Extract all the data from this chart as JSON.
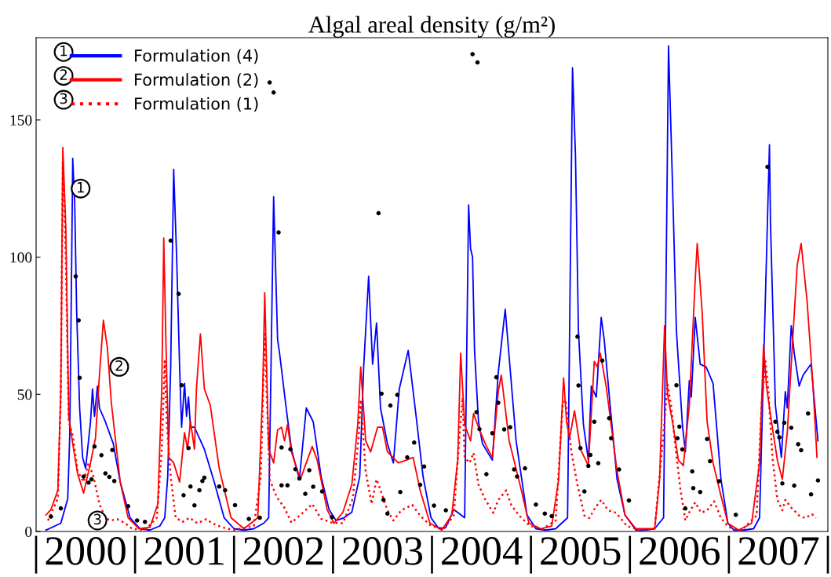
{
  "chart_data": {
    "type": "line",
    "title": "Algal areal density (g/m²)",
    "xlim": [
      2000,
      2008
    ],
    "ylim": [
      0,
      180
    ],
    "yticks": [
      0,
      50,
      100,
      150
    ],
    "xticks": [
      {
        "value": 2000,
        "label": "|"
      },
      {
        "value": 2000.5,
        "label": "2000"
      },
      {
        "value": 2001,
        "label": "|"
      },
      {
        "value": 2001.5,
        "label": "2001"
      },
      {
        "value": 2002,
        "label": "|"
      },
      {
        "value": 2002.5,
        "label": "2002"
      },
      {
        "value": 2003,
        "label": "|"
      },
      {
        "value": 2003.5,
        "label": "2003"
      },
      {
        "value": 2004,
        "label": "|"
      },
      {
        "value": 2004.5,
        "label": "2004"
      },
      {
        "value": 2005,
        "label": "|"
      },
      {
        "value": 2005.5,
        "label": "2005"
      },
      {
        "value": 2006,
        "label": "|"
      },
      {
        "value": 2006.5,
        "label": "2006"
      },
      {
        "value": 2007,
        "label": "|"
      },
      {
        "value": 2007.5,
        "label": "2007"
      },
      {
        "value": 2008,
        "label": "|"
      }
    ],
    "grid": false,
    "legend": "top left",
    "marker": "none",
    "annotations": [
      "1",
      "2",
      "3",
      {
        "text": "1",
        "x": 2000.45,
        "y": 125
      },
      {
        "text": "2",
        "x": 2000.84,
        "y": 60
      },
      {
        "text": "3",
        "x": 2000.62,
        "y": 4
      }
    ],
    "series": [
      {
        "name": "Formulation (4)",
        "color": "#0000ff",
        "line_style": "solid",
        "x": [
          2000.1,
          2000.25,
          2000.32,
          2000.34,
          2000.36,
          2000.37,
          2000.39,
          2000.41,
          2000.44,
          2000.47,
          2000.5,
          2000.55,
          2000.57,
          2000.59,
          2000.62,
          2000.64,
          2000.7,
          2000.78,
          2000.85,
          2000.95,
          2001.05,
          2001.15,
          2001.25,
          2001.3,
          2001.33,
          2001.36,
          2001.39,
          2001.42,
          2001.45,
          2001.47,
          2001.5,
          2001.52,
          2001.54,
          2001.56,
          2001.6,
          2001.7,
          2001.8,
          2001.9,
          2002.0,
          2002.1,
          2002.2,
          2002.3,
          2002.35,
          2002.4,
          2002.44,
          2002.46,
          2002.52,
          2002.58,
          2002.66,
          2002.73,
          2002.8,
          2002.88,
          2002.96,
          2003.03,
          2003.11,
          2003.19,
          2003.27,
          2003.31,
          2003.36,
          2003.4,
          2003.44,
          2003.48,
          2003.55,
          2003.61,
          2003.67,
          2003.76,
          2003.83,
          2003.91,
          2003.99,
          2004.07,
          2004.14,
          2004.22,
          2004.33,
          2004.37,
          2004.39,
          2004.41,
          2004.43,
          2004.47,
          2004.51,
          2004.61,
          2004.67,
          2004.74,
          2004.85,
          2004.96,
          2005.05,
          2005.15,
          2005.25,
          2005.37,
          2005.42,
          2005.45,
          2005.48,
          2005.53,
          2005.58,
          2005.61,
          2005.66,
          2005.71,
          2005.74,
          2005.8,
          2005.87,
          2005.95,
          2006.06,
          2006.15,
          2006.25,
          2006.34,
          2006.39,
          2006.43,
          2006.47,
          2006.53,
          2006.56,
          2006.6,
          2006.62,
          2006.66,
          2006.71,
          2006.77,
          2006.84,
          2006.92,
          2006.99,
          2007.05,
          2007.15,
          2007.25,
          2007.31,
          2007.34,
          2007.41,
          2007.42,
          2007.47,
          2007.53,
          2007.57,
          2007.59,
          2007.63,
          2007.66,
          2007.71,
          2007.75,
          2007.83,
          2007.9
        ],
        "values": [
          0.5,
          3,
          12,
          35,
          100,
          136,
          120,
          80,
          45,
          27,
          23,
          40,
          52,
          42,
          53,
          45,
          40,
          32,
          18,
          5,
          1,
          0.5,
          2,
          5,
          20,
          60,
          132,
          100,
          60,
          38,
          54,
          42,
          49,
          38,
          38,
          30,
          18,
          5,
          1,
          0.5,
          1,
          3,
          5,
          122,
          70,
          65,
          47,
          30,
          19,
          45,
          40,
          20,
          8,
          4,
          5,
          7,
          20,
          60,
          93,
          61,
          76,
          45,
          32,
          25,
          52,
          66,
          45,
          20,
          5,
          1,
          1.5,
          8,
          5,
          119,
          103,
          100,
          66,
          40,
          32,
          26,
          58,
          81,
          33,
          6,
          1,
          0.5,
          1,
          5,
          169,
          137,
          73,
          39,
          26,
          53,
          49,
          78,
          70,
          46,
          19,
          6,
          0.5,
          0.5,
          1,
          5,
          177,
          127,
          73,
          39,
          29,
          55,
          49,
          78,
          61,
          60,
          54,
          19,
          3,
          0.5,
          0.5,
          1,
          5,
          46,
          141,
          113,
          46,
          27,
          51,
          45,
          75,
          65,
          53,
          57,
          61,
          33
        ]
      },
      {
        "name": "Formulation (2)",
        "color": "#ff0000",
        "line_style": "solid",
        "x": [
          2000.1,
          2000.15,
          2000.22,
          2000.25,
          2000.27,
          2000.3,
          2000.33,
          2000.37,
          2000.42,
          2000.48,
          2000.55,
          2000.6,
          2000.64,
          2000.68,
          2000.72,
          2000.76,
          2000.85,
          2000.93,
          2001.04,
          2001.15,
          2001.23,
          2001.27,
          2001.29,
          2001.31,
          2001.34,
          2001.39,
          2001.45,
          2001.5,
          2001.53,
          2001.56,
          2001.6,
          2001.62,
          2001.66,
          2001.7,
          2001.76,
          2001.85,
          2001.97,
          2002.1,
          2002.24,
          2002.29,
          2002.31,
          2002.35,
          2002.4,
          2002.44,
          2002.48,
          2002.51,
          2002.54,
          2002.58,
          2002.67,
          2002.79,
          2002.84,
          2002.94,
          2003.01,
          2003.1,
          2003.19,
          2003.25,
          2003.28,
          2003.33,
          2003.38,
          2003.45,
          2003.5,
          2003.55,
          2003.66,
          2003.74,
          2003.81,
          2003.88,
          2003.98,
          2004.1,
          2004.2,
          2004.26,
          2004.29,
          2004.33,
          2004.39,
          2004.42,
          2004.48,
          2004.55,
          2004.61,
          2004.67,
          2004.7,
          2004.78,
          2004.89,
          2004.98,
          2005.1,
          2005.21,
          2005.28,
          2005.33,
          2005.36,
          2005.39,
          2005.44,
          2005.5,
          2005.58,
          2005.64,
          2005.67,
          2005.7,
          2005.76,
          2005.87,
          2005.95,
          2006.06,
          2006.25,
          2006.3,
          2006.35,
          2006.38,
          2006.43,
          2006.49,
          2006.54,
          2006.6,
          2006.66,
          2006.68,
          2006.73,
          2006.78,
          2006.84,
          2006.92,
          2006.99,
          2007.1,
          2007.23,
          2007.31,
          2007.35,
          2007.38,
          2007.43,
          2007.49,
          2007.54,
          2007.59,
          2007.64,
          2007.69,
          2007.73,
          2007.79,
          2007.85,
          2007.89
        ],
        "values": [
          6,
          8,
          15,
          52,
          140,
          111,
          42,
          32,
          21,
          14,
          25,
          34,
          57,
          77,
          67,
          47,
          18,
          5,
          1,
          1.5,
          10,
          52,
          107,
          72,
          27,
          25,
          18,
          36,
          30,
          40,
          30,
          52,
          72,
          52,
          46,
          23,
          5,
          1,
          5,
          52,
          87,
          30,
          25,
          37,
          38,
          33,
          39,
          29,
          19,
          31,
          26,
          8,
          3,
          7,
          17,
          39,
          60,
          33,
          29,
          38,
          38,
          29,
          25,
          26,
          27,
          15,
          3,
          0.5,
          6,
          26,
          65,
          39,
          33,
          43,
          37,
          31,
          27,
          51,
          57,
          33,
          17,
          3,
          1,
          2,
          19,
          56,
          40,
          34,
          44,
          30,
          24,
          62,
          60,
          65,
          53,
          22,
          6,
          1,
          1,
          19,
          75,
          50,
          40,
          26,
          24,
          46,
          92,
          105,
          80,
          40,
          25,
          13,
          3,
          0.5,
          3,
          25,
          68,
          53,
          40,
          26,
          19,
          36,
          67,
          97,
          105,
          84,
          53,
          27
        ]
      },
      {
        "name": "Formulation (1)",
        "color": "#ff0000",
        "line_style": "dotted",
        "x": [
          2000.12,
          2000.22,
          2000.25,
          2000.27,
          2000.3,
          2000.33,
          2000.37,
          2000.42,
          2000.48,
          2000.53,
          2000.58,
          2000.64,
          2000.7,
          2000.75,
          2000.82,
          2000.9,
          2000.97,
          2001.1,
          2001.22,
          2001.27,
          2001.3,
          2001.32,
          2001.36,
          2001.41,
          2001.48,
          2001.55,
          2001.63,
          2001.72,
          2001.78,
          2001.88,
          2002.0,
          2002.2,
          2002.27,
          2002.31,
          2002.36,
          2002.43,
          2002.51,
          2002.58,
          2002.67,
          2002.79,
          2002.88,
          2002.99,
          2003.1,
          2003.2,
          2003.26,
          2003.28,
          2003.33,
          2003.39,
          2003.44,
          2003.49,
          2003.55,
          2003.61,
          2003.69,
          2003.8,
          2003.88,
          2003.99,
          2004.12,
          2004.22,
          2004.28,
          2004.31,
          2004.33,
          2004.38,
          2004.42,
          2004.47,
          2004.54,
          2004.62,
          2004.67,
          2004.75,
          2004.8,
          2004.88,
          2004.99,
          2005.12,
          2005.25,
          2005.32,
          2005.35,
          2005.41,
          2005.47,
          2005.54,
          2005.59,
          2005.65,
          2005.71,
          2005.78,
          2005.86,
          2005.97,
          2006.1,
          2006.25,
          2006.34,
          2006.38,
          2006.42,
          2006.46,
          2006.51,
          2006.56,
          2006.61,
          2006.66,
          2006.72,
          2006.78,
          2006.85,
          2006.92,
          2007.0,
          2007.13,
          2007.28,
          2007.33,
          2007.37,
          2007.4,
          2007.44,
          2007.49,
          2007.54,
          2007.57,
          2007.63,
          2007.71,
          2007.77,
          2007.84,
          2007.88
        ],
        "values": [
          4,
          12,
          50,
          135,
          100,
          40,
          35,
          22,
          18,
          25,
          20,
          10,
          5,
          4,
          4.5,
          3,
          1,
          0.5,
          5,
          30,
          62,
          40,
          20,
          5,
          3.5,
          5,
          3,
          4.5,
          3,
          1.5,
          0.5,
          2,
          20,
          72,
          19,
          12.6,
          8.6,
          3.2,
          6,
          10,
          4.6,
          3.2,
          3,
          12,
          35,
          48,
          22,
          10,
          19,
          14,
          7.7,
          4,
          7.7,
          9.7,
          5.8,
          2,
          1,
          5.8,
          36,
          48.8,
          27,
          25,
          28.7,
          17,
          11.5,
          6.8,
          11.5,
          15,
          9.7,
          5.8,
          2,
          1,
          4,
          46,
          48,
          28.7,
          17,
          5.8,
          4.9,
          8.7,
          11.5,
          7.7,
          6.8,
          2,
          0.5,
          1,
          36,
          53.6,
          45,
          30.7,
          15.5,
          4,
          7.7,
          10.6,
          6.8,
          7.7,
          11,
          4.9,
          1.5,
          0.5,
          5.8,
          46,
          62,
          50.7,
          27,
          11.5,
          7.7,
          11.5,
          8.7,
          5.8,
          4.9,
          6.3,
          4.9
        ]
      },
      {
        "type": "scatter",
        "color": "#000000",
        "marker": "circle",
        "x": [
          2000.15,
          2000.25,
          2000.4,
          2000.43,
          2000.44,
          2000.48,
          2000.53,
          2000.56,
          2000.59,
          2000.66,
          2000.7,
          2000.74,
          2000.77,
          2000.79,
          2000.93,
          2001.02,
          2001.1,
          2001.36,
          2001.44,
          2001.47,
          2001.49,
          2001.54,
          2001.56,
          2001.6,
          2001.65,
          2001.68,
          2001.7,
          2001.85,
          2001.91,
          2002.01,
          2002.15,
          2002.26,
          2002.36,
          2002.4,
          2002.45,
          2002.48,
          2002.48,
          2002.54,
          2002.57,
          2002.62,
          2002.66,
          2002.72,
          2002.76,
          2002.8,
          2002.89,
          2002.99,
          2003.46,
          2003.49,
          2003.58,
          2003.65,
          2003.82,
          2003.75,
          2003.92,
          2003.88,
          2003.68,
          2003.51,
          2003.55,
          2004.02,
          2004.14,
          2004.41,
          2004.46,
          2004.45,
          2004.48,
          2004.55,
          2004.61,
          2004.65,
          2004.67,
          2004.73,
          2004.79,
          2004.83,
          2004.86,
          2004.94,
          2005.05,
          2005.14,
          2005.21,
          2005.47,
          2005.48,
          2005.5,
          2005.54,
          2005.58,
          2005.6,
          2005.64,
          2005.68,
          2005.72,
          2005.79,
          2005.81,
          2005.89,
          2005.99,
          2006.47,
          2006.5,
          2006.48,
          2006.53,
          2006.63,
          2006.64,
          2006.56,
          2006.71,
          2006.78,
          2006.81,
          2006.9,
          2007.07,
          2007.39,
          2007.47,
          2007.49,
          2007.51,
          2007.54,
          2007.56,
          2007.63,
          2007.66,
          2007.7,
          2007.73,
          2007.8,
          2007.83,
          2007.9
        ],
        "values": [
          5.4,
          8.4,
          93,
          77,
          56,
          20,
          17.8,
          19,
          31,
          27.8,
          21.2,
          19.9,
          29.7,
          18.4,
          9.2,
          4,
          3.5,
          106,
          86.6,
          53.3,
          13.2,
          30.4,
          16.4,
          9.5,
          15,
          18.4,
          19.6,
          16.4,
          15,
          9.6,
          4.6,
          5,
          163.7,
          160,
          109,
          30.6,
          16.8,
          16.8,
          30,
          22.7,
          19.3,
          13.7,
          22.3,
          16.3,
          14.6,
          5.2,
          116,
          50.2,
          45.9,
          49.8,
          32.4,
          27,
          23.7,
          17,
          14.4,
          11.5,
          6.5,
          9.4,
          7.7,
          174,
          171,
          43.5,
          37.3,
          20.9,
          35.8,
          56.2,
          46.9,
          37.2,
          38,
          22.6,
          20,
          23,
          9.8,
          6.5,
          5.6,
          71,
          53.2,
          30.4,
          14.6,
          23.9,
          27.9,
          40,
          24.9,
          62.3,
          41.3,
          34,
          22.6,
          11.3,
          53.3,
          38.2,
          34,
          29.9,
          21.9,
          15.8,
          8.4,
          14.4,
          33.7,
          25.6,
          18.3,
          6.1,
          132.9,
          40,
          36.3,
          34.3,
          17.5,
          39.6,
          37.8,
          16.7,
          31.8,
          29.6,
          43,
          13.5,
          18.6
        ]
      }
    ]
  }
}
